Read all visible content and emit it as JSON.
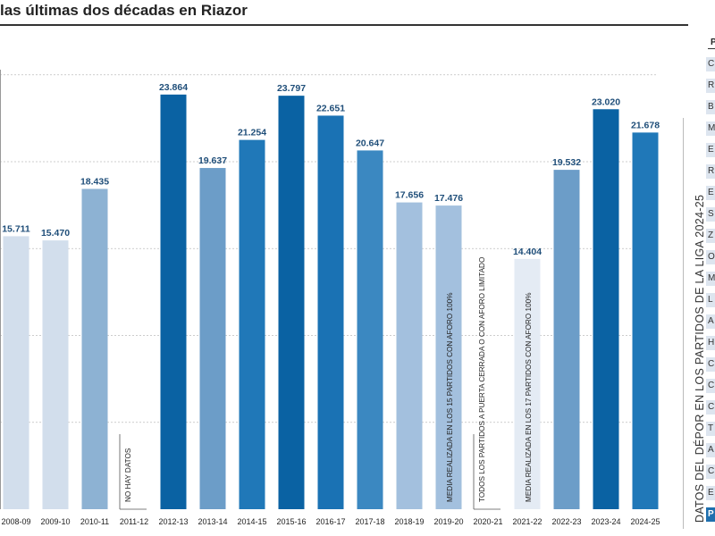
{
  "title": "las últimas dos décadas en Riazor",
  "chart_data": {
    "type": "bar",
    "title": "las últimas dos décadas en Riazor",
    "xlabel": "",
    "ylabel": "",
    "grid": true,
    "categories": [
      "2008-09",
      "2009-10",
      "2010-11",
      "2011-12",
      "2012-13",
      "2013-14",
      "2014-15",
      "2015-16",
      "2016-17",
      "2017-18",
      "2018-19",
      "2019-20",
      "2020-21",
      "2021-22",
      "2022-23",
      "2023-24",
      "2024-25"
    ],
    "values": [
      15711,
      15470,
      18435,
      null,
      23864,
      19637,
      21254,
      23797,
      22651,
      20647,
      17656,
      17476,
      null,
      14404,
      19532,
      23020,
      21678
    ],
    "value_labels": [
      "15.711",
      "15.470",
      "18.435",
      "",
      "23.864",
      "19.637",
      "21.254",
      "23.797",
      "22.651",
      "20.647",
      "17.656",
      "17.476",
      "",
      "14.404",
      "19.532",
      "23.020",
      "21.678"
    ],
    "colors": [
      "#d2deec",
      "#d2deec",
      "#8db2d3",
      "#ffffff",
      "#0a62a3",
      "#6c9dc8",
      "#2078b8",
      "#0a62a3",
      "#1a72b4",
      "#3b88c1",
      "#a3c0de",
      "#a3c0de",
      "#ffffff",
      "#e4ebf4",
      "#6c9dc8",
      "#0a62a3",
      "#2078b8"
    ],
    "annotations": [
      {
        "category": "2011-12",
        "text": "NO HAY DATOS"
      },
      {
        "category": "2019-20",
        "text": "MEDIA REALIZADA EN LOS 15 PARTIDOS CON AFORO 100%"
      },
      {
        "category": "2020-21",
        "text": "TODOS LOS PARTIDOS A PUERTA CERRADA O CON AFORO LIMITADO"
      },
      {
        "category": "2021-22",
        "text": "MEDIA REALIZADA EN LOS 17 PARTIDOS CON AFORO 100%"
      }
    ],
    "ylim": [
      0,
      26000
    ]
  },
  "side_panel": {
    "header": "P",
    "label": "DATOS DEL DÉPOR EN LOS PARTIDOS DE LA LIGA 2024-25",
    "rows": [
      "C",
      "R",
      "B",
      "M",
      "E",
      "R",
      "E",
      "S",
      "Z",
      "O",
      "M",
      "L",
      "A",
      "H",
      "C",
      "C",
      "C",
      "T",
      "A",
      "C",
      "E",
      "P"
    ]
  }
}
